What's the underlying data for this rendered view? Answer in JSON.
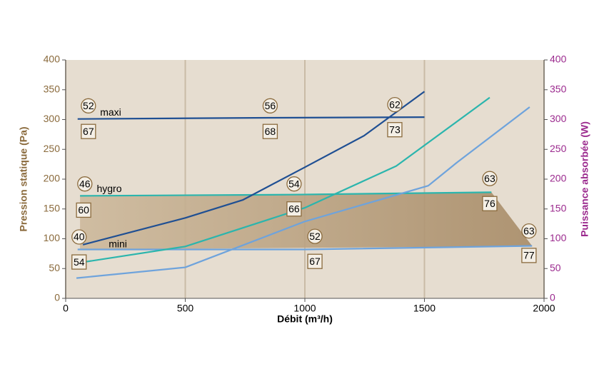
{
  "chart_data": {
    "type": "line",
    "xlabel": "Débit (m³/h)",
    "ylabel": "Pression statique (Pa)",
    "y2label": "Puissance absorbée (W)",
    "xlim": [
      0,
      2000
    ],
    "xticks": [
      0,
      500,
      1000,
      1500,
      2000
    ],
    "ylim": [
      0,
      400
    ],
    "yticks": [
      0,
      50,
      100,
      150,
      200,
      250,
      300,
      350,
      400
    ],
    "y2lim": [
      0,
      400
    ],
    "y2ticks": [
      0,
      50,
      100,
      150,
      200,
      250,
      300,
      350,
      400
    ],
    "grid": true,
    "background": "#e6ddd0",
    "series": [
      {
        "kind": "area",
        "color": "#b49c7c",
        "x": [
          60,
          1780,
          1950
        ],
        "values": [
          172,
          178,
          88
        ],
        "base": [
          82,
          87,
          88
        ]
      },
      {
        "color": "#1f4f93",
        "x": [
          50,
          850,
          1500
        ],
        "values": [
          301,
          303,
          304
        ]
      },
      {
        "color": "#2bb5ad",
        "x": [
          60,
          950,
          1780
        ],
        "values": [
          172,
          174,
          178
        ]
      },
      {
        "color": "#6ea3dc",
        "x": [
          50,
          1000,
          1950
        ],
        "values": [
          82,
          82,
          88
        ]
      },
      {
        "color": "#1f4f93",
        "axis": "y2",
        "x": [
          72,
          500,
          740,
          1000,
          1248,
          1500
        ],
        "values": [
          90,
          135,
          165,
          220,
          273,
          347
        ]
      },
      {
        "color": "#2bb5ad",
        "axis": "y2",
        "x": [
          45,
          500,
          1000,
          1382,
          1773
        ],
        "values": [
          59,
          87,
          152,
          222,
          337
        ]
      },
      {
        "color": "#6ea3dc",
        "axis": "y2",
        "x": [
          45,
          500,
          1000,
          1516,
          1636,
          1940
        ],
        "values": [
          34,
          52,
          129,
          189,
          228,
          321
        ]
      }
    ],
    "annotations": [
      {
        "text": "52",
        "shape": "circle",
        "x": 95,
        "y": 323
      },
      {
        "text": "56",
        "shape": "circle",
        "x": 855,
        "y": 323
      },
      {
        "text": "62",
        "shape": "circle",
        "x": 1376,
        "y": 325
      },
      {
        "text": "67",
        "shape": "square",
        "x": 95,
        "y": 280
      },
      {
        "text": "68",
        "shape": "square",
        "x": 855,
        "y": 280
      },
      {
        "text": "73",
        "shape": "square",
        "x": 1376,
        "y": 283
      },
      {
        "text": "46",
        "shape": "circle",
        "x": 80,
        "y": 192
      },
      {
        "text": "54",
        "shape": "circle",
        "x": 955,
        "y": 192
      },
      {
        "text": "63",
        "shape": "circle",
        "x": 1773,
        "y": 201
      },
      {
        "text": "60",
        "shape": "square",
        "x": 75,
        "y": 148
      },
      {
        "text": "66",
        "shape": "square",
        "x": 955,
        "y": 150
      },
      {
        "text": "76",
        "shape": "square",
        "x": 1773,
        "y": 159
      },
      {
        "text": "40",
        "shape": "circle",
        "x": 56,
        "y": 103
      },
      {
        "text": "52",
        "shape": "circle",
        "x": 1042,
        "y": 104
      },
      {
        "text": "63",
        "shape": "circle",
        "x": 1937,
        "y": 113
      },
      {
        "text": "54",
        "shape": "square",
        "x": 56,
        "y": 61
      },
      {
        "text": "67",
        "shape": "square",
        "x": 1042,
        "y": 62
      },
      {
        "text": "77",
        "shape": "square",
        "x": 1937,
        "y": 72
      },
      {
        "text": "maxi",
        "shape": "none",
        "x": 188,
        "y": 312
      },
      {
        "text": "hygro",
        "shape": "none",
        "x": 182,
        "y": 184
      },
      {
        "text": "mini",
        "shape": "none",
        "x": 218,
        "y": 91
      }
    ]
  }
}
